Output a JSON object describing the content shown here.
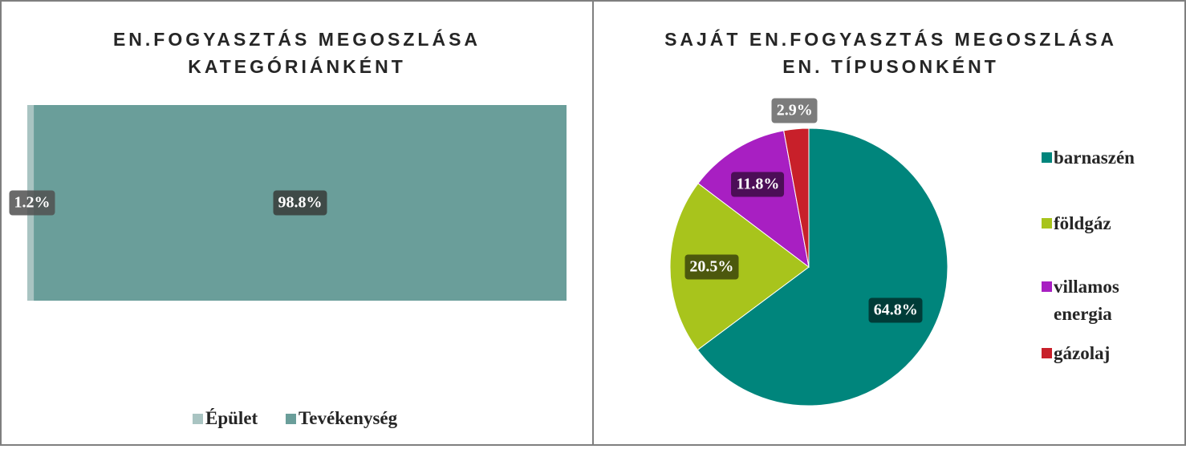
{
  "chart_data": [
    {
      "type": "stacked_bar_h",
      "title": "EN.FOGYASZTÁS MEGOSZLÁSA KATEGÓRIÁNKÉNT",
      "xlim": [
        0,
        100
      ],
      "series": [
        {
          "name": "Épület",
          "color": "#a9c4c2",
          "values": [
            1.2
          ],
          "value_labels": [
            "1.2%"
          ]
        },
        {
          "name": "Tevékenység",
          "color": "#6a9e9a",
          "values": [
            98.8
          ],
          "value_labels": [
            "98.8%"
          ]
        }
      ]
    },
    {
      "type": "pie",
      "title": "SAJÁT EN.FOGYASZTÁS MEGOSZLÁSA EN. TÍPUSONKÉNT",
      "categories": [
        "barnaszén",
        "földgáz",
        "villamos energia",
        "gázolaj"
      ],
      "values": [
        64.8,
        20.5,
        11.8,
        2.9
      ],
      "value_labels": [
        "64.8%",
        "20.5%",
        "11.8%",
        "2.9%"
      ],
      "colors": [
        "#00857c",
        "#a8c41c",
        "#a81fc2",
        "#c8202a"
      ],
      "legend": "right"
    }
  ]
}
